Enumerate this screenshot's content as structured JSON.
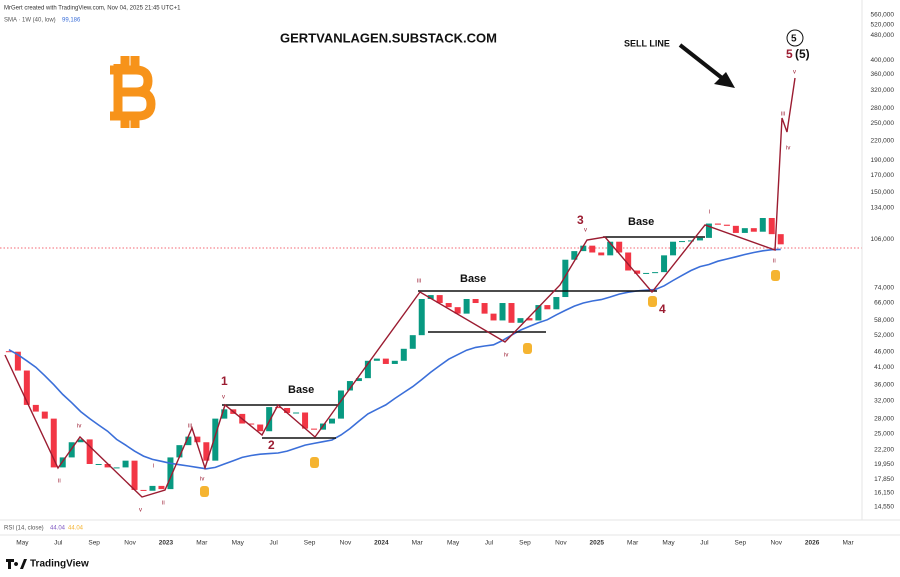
{
  "header": {
    "credit": "MrGert created with TradingView.com, Nov 04, 2025 21:45 UTC+1",
    "watermark": "GERTVANLAGEN.SUBSTACK.COM",
    "sell_line": "SELL LINE",
    "footer_brand": "TradingView"
  },
  "legend": {
    "sma_label": "SMA · 1W (40, low)",
    "sma_value": "99,186",
    "rsi_label": "RSI (14, close)",
    "rsi_value_1": "44.04",
    "rsi_value_2": "44.04"
  },
  "annotations": [
    "Base",
    "Base",
    "Base",
    "1",
    "2",
    "3",
    "4",
    "5",
    "5",
    "(5)",
    "ii",
    "iv",
    "v",
    "i",
    "ii",
    "iii",
    "iv",
    "v",
    "iii",
    "v",
    "iv",
    "i",
    "ii",
    "iii",
    "iv",
    "v"
  ],
  "chart_data": {
    "type": "candlestick",
    "log": true,
    "categories": [
      null,
      null,
      "May",
      null,
      null,
      null,
      "Jul",
      null,
      null,
      null,
      "Sep",
      null,
      null,
      null,
      "Nov",
      null,
      null,
      null,
      "2023",
      null,
      null,
      null,
      "Mar",
      null,
      null,
      null,
      "May",
      null,
      null,
      null,
      "Jul",
      null,
      null,
      null,
      "Sep",
      null,
      null,
      null,
      "Nov",
      null,
      null,
      null,
      "2024",
      null,
      null,
      null,
      "Mar",
      null,
      null,
      null,
      "May",
      null,
      null,
      null,
      "Jul",
      null,
      null,
      null,
      "Sep",
      null,
      null,
      null,
      "Nov",
      null,
      null,
      null,
      "2025",
      null,
      null,
      null,
      "Mar",
      null,
      null,
      null,
      "May",
      null,
      null,
      null,
      "Jul",
      null,
      null,
      null,
      "Sep",
      null,
      null,
      null,
      "Nov",
      null,
      null,
      null,
      "2026",
      null,
      null,
      null,
      "Mar",
      null
    ],
    "series": [
      {
        "name": "BTC",
        "up_color": "#089981",
        "down_color": "#f23645",
        "values": [
          46000,
          40000,
          31000,
          29500,
          28000,
          19500,
          21000,
          23500,
          24000,
          20000,
          20000,
          19500,
          19500,
          20500,
          16500,
          16400,
          17000,
          16600,
          21000,
          23000,
          24500,
          23500,
          20500,
          28000,
          30000,
          29000,
          27000,
          26800,
          25500,
          30500,
          30300,
          29200,
          29300,
          26000,
          25800,
          27000,
          28000,
          34500,
          37000,
          37800,
          43000,
          43700,
          42000,
          43000,
          47000,
          52000,
          68000,
          70000,
          66000,
          64000,
          61000,
          68000,
          66000,
          61000,
          58000,
          66000,
          57000,
          59000,
          58000,
          65000,
          63000,
          69000,
          91000,
          97000,
          101000,
          96000,
          94000,
          104000,
          96000,
          84000,
          82000,
          82500,
          83000,
          94000,
          104000,
          104500,
          105000,
          107000,
          119000,
          118000,
          117000,
          111000,
          115000,
          112000,
          124000,
          110000,
          102000,
          null,
          null,
          null,
          null,
          null,
          null,
          null,
          null,
          null
        ]
      },
      {
        "name": "SMA",
        "color": "#3b6fd9",
        "values": [
          46700,
          45000,
          43000,
          41000,
          38500,
          36000,
          33500,
          31500,
          29500,
          28000,
          26700,
          25500,
          24000,
          23000,
          22000,
          21200,
          20700,
          20400,
          20100,
          19900,
          19700,
          19500,
          19300,
          19500,
          20000,
          20500,
          21000,
          21300,
          21500,
          21600,
          21700,
          22000,
          22500,
          23000,
          23300,
          23600,
          23900,
          24800,
          26000,
          27500,
          29000,
          30000,
          31000,
          32500,
          34000,
          35500,
          37400,
          39500,
          41500,
          43500,
          45000,
          46500,
          47500,
          48000,
          48400,
          50000,
          52000,
          54000,
          55500,
          57000,
          58300,
          60500,
          62500,
          64500,
          66000,
          67000,
          67700,
          69000,
          70500,
          71500,
          72200,
          72600,
          72900,
          75000,
          78000,
          81000,
          84000,
          86500,
          87800,
          90000,
          91500,
          93000,
          94600,
          96000,
          97200,
          98000,
          98200,
          null,
          null,
          null,
          null,
          null,
          null,
          null,
          null,
          null
        ]
      }
    ],
    "ylim": [
      13700,
      580000
    ],
    "yticks": [
      {
        "value": 560000,
        "label": "560,000"
      },
      {
        "value": 520000,
        "label": "520,000"
      },
      {
        "value": 480000,
        "label": "480,000"
      },
      {
        "value": 400000,
        "label": "400,000"
      },
      {
        "value": 360000,
        "label": "360,000"
      },
      {
        "value": 320000,
        "label": "320,000"
      },
      {
        "value": 280000,
        "label": "280,000"
      },
      {
        "value": 250000,
        "label": "250,000"
      },
      {
        "value": 220000,
        "label": "220,000"
      },
      {
        "value": 190000,
        "label": "190,000"
      },
      {
        "value": 170000,
        "label": "170,000"
      },
      {
        "value": 150000,
        "label": "150,000"
      },
      {
        "value": 134000,
        "label": "134,000"
      },
      {
        "value": 106000,
        "label": "106,000"
      },
      {
        "value": 74000,
        "label": "74,000"
      },
      {
        "value": 66000,
        "label": "66,000"
      },
      {
        "value": 58000,
        "label": "58,000"
      },
      {
        "value": 52000,
        "label": "52,000"
      },
      {
        "value": 46000,
        "label": "46,000"
      },
      {
        "value": 41000,
        "label": "41,000"
      },
      {
        "value": 36000,
        "label": "36,000"
      },
      {
        "value": 32000,
        "label": "32,000"
      },
      {
        "value": 28000,
        "label": "28,000"
      },
      {
        "value": 25000,
        "label": "25,000"
      },
      {
        "value": 22200,
        "label": "22,200"
      },
      {
        "value": 19950,
        "label": "19,950"
      },
      {
        "value": 17850,
        "label": "17,850"
      },
      {
        "value": 16150,
        "label": "16,150"
      },
      {
        "value": 14550,
        "label": "14,550"
      }
    ]
  }
}
